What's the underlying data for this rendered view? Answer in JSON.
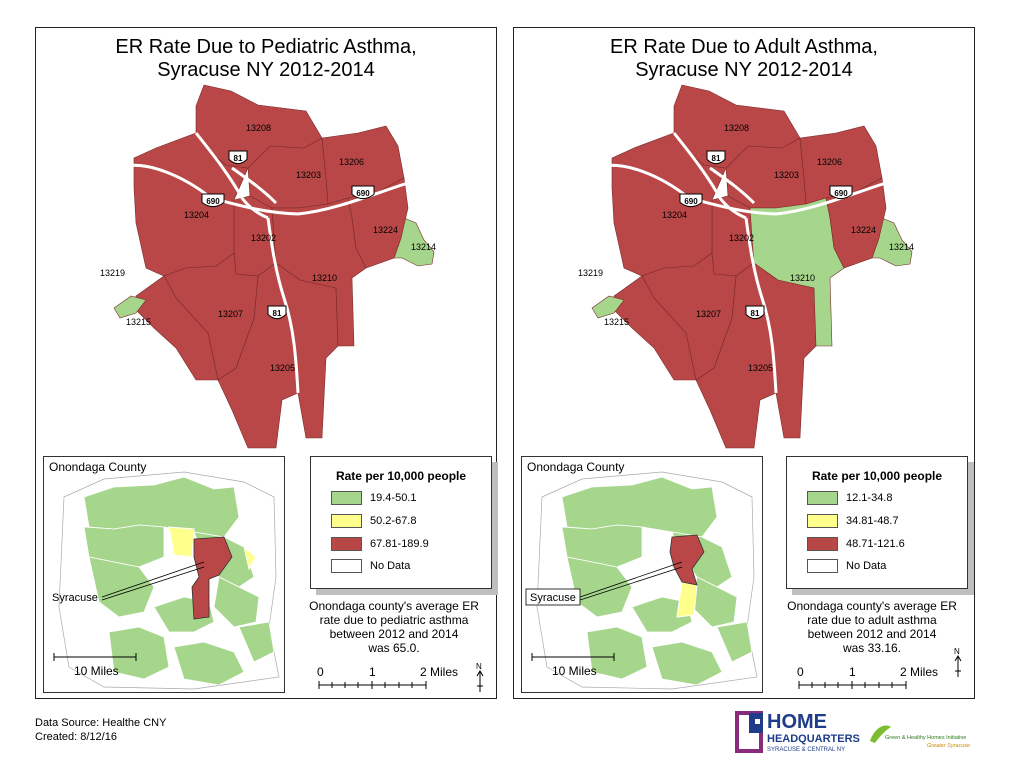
{
  "left_panel": {
    "title_line1": "ER Rate Due to Pediatric Asthma,",
    "title_line2": "Syracuse NY 2012-2014",
    "zip_labels": [
      "13208",
      "13203",
      "13206",
      "13204",
      "13202",
      "13224",
      "13214",
      "13219",
      "13215",
      "13207",
      "13210",
      "13205"
    ],
    "highway_labels": [
      "81",
      "690",
      "690",
      "81"
    ],
    "zip_fills": {
      "13208": "high",
      "13203": "high",
      "13206": "high",
      "13204": "high",
      "13202": "high",
      "13224": "high",
      "13214": "low",
      "13219": "low",
      "13215": "high",
      "13207": "high",
      "13210": "high",
      "13205": "high"
    },
    "inset": {
      "title": "Onondaga County",
      "callout": "Syracuse",
      "scale_label": "10 Miles"
    },
    "legend": {
      "title": "Rate per 10,000 people",
      "items": [
        {
          "label": "19.4-50.1",
          "color": "#a6d68c"
        },
        {
          "label": "50.2-67.8",
          "color": "#ffff8c"
        },
        {
          "label": "67.81-189.9",
          "color": "#b94747"
        },
        {
          "label": "No Data",
          "color": "#ffffff"
        }
      ]
    },
    "note": [
      "Onondaga county's average ER",
      "rate due to pediatric asthma",
      "between 2012 and 2014",
      "was 65.0."
    ],
    "scale_bar": {
      "zero": "0",
      "one": "1",
      "two": "2 Miles"
    }
  },
  "right_panel": {
    "title_line1": "ER Rate Due to Adult Asthma,",
    "title_line2": "Syracuse NY 2012-2014",
    "zip_labels": [
      "13208",
      "13203",
      "13206",
      "13204",
      "13202",
      "13224",
      "13214",
      "13219",
      "13215",
      "13207",
      "13210",
      "13205"
    ],
    "highway_labels": [
      "81",
      "690",
      "690",
      "81"
    ],
    "zip_fills": {
      "13208": "high",
      "13203": "high",
      "13206": "high",
      "13204": "high",
      "13202": "high",
      "13224": "high",
      "13214": "low",
      "13219": "low",
      "13215": "high",
      "13207": "high",
      "13210": "low",
      "13205": "high"
    },
    "inset": {
      "title": "Onondaga County",
      "callout": "Syracuse",
      "scale_label": "10 Miles"
    },
    "legend": {
      "title": "Rate per 10,000 people",
      "items": [
        {
          "label": "12.1-34.8",
          "color": "#a6d68c"
        },
        {
          "label": "34.81-48.7",
          "color": "#ffff8c"
        },
        {
          "label": "48.71-121.6",
          "color": "#b94747"
        },
        {
          "label": "No Data",
          "color": "#ffffff"
        }
      ]
    },
    "note": [
      "Onondaga county's average ER",
      "rate due to adult asthma",
      "between 2012 and 2014",
      "was 33.16."
    ],
    "scale_bar": {
      "zero": "0",
      "one": "1",
      "two": "2 Miles"
    }
  },
  "footer": {
    "source": "Data Source: Healthe CNY",
    "created": "Created: 8/12/16"
  },
  "logo": {
    "home": "HOME",
    "headquarters": "HEADQUARTERS",
    "tagline": "SYRACUSE & CENTRAL NY",
    "partner_line1": "Green & Healthy Homes Initiative",
    "partner_line2": "Greater Syracuse"
  },
  "colors": {
    "high": "#b94747",
    "low": "#a6d68c",
    "mid": "#ffff8c",
    "road": "#ffffff"
  }
}
